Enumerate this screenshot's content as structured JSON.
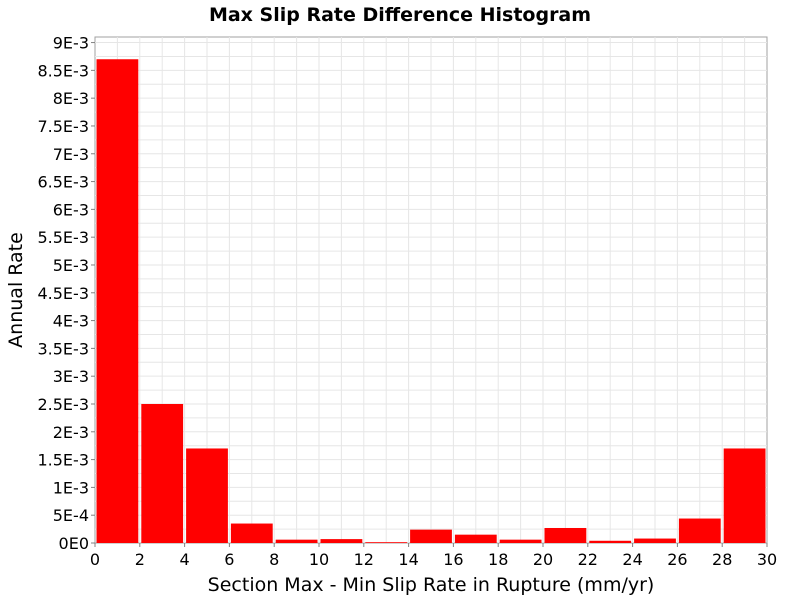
{
  "chart_data": {
    "type": "bar",
    "title": "Max Slip Rate Difference Histogram",
    "xlabel": "Section Max - Min Slip Rate in Rupture (mm/yr)",
    "ylabel": "Annual Rate",
    "xlim": [
      0,
      30
    ],
    "ylim": [
      0,
      0.0091
    ],
    "x_ticks": [
      0,
      2,
      4,
      6,
      8,
      10,
      12,
      14,
      16,
      18,
      20,
      22,
      24,
      26,
      28,
      30
    ],
    "x_tick_labels": [
      "0",
      "2",
      "4",
      "6",
      "8",
      "10",
      "12",
      "14",
      "16",
      "18",
      "20",
      "22",
      "24",
      "26",
      "28",
      "30"
    ],
    "y_ticks": [
      0,
      0.0005,
      0.001,
      0.0015,
      0.002,
      0.0025,
      0.003,
      0.0035,
      0.004,
      0.0045,
      0.005,
      0.0055,
      0.006,
      0.0065,
      0.007,
      0.0075,
      0.008,
      0.0085,
      0.009
    ],
    "y_tick_labels": [
      "0E0",
      "5E-4",
      "1E-3",
      "1.5E-3",
      "2E-3",
      "2.5E-3",
      "3E-3",
      "3.5E-3",
      "4E-3",
      "4.5E-3",
      "5E-3",
      "5.5E-3",
      "6E-3",
      "6.5E-3",
      "7E-3",
      "7.5E-3",
      "8E-3",
      "8.5E-3",
      "9E-3"
    ],
    "bins": [
      {
        "x0": 0,
        "x1": 2,
        "value": 0.0087
      },
      {
        "x0": 2,
        "x1": 4,
        "value": 0.0025
      },
      {
        "x0": 4,
        "x1": 6,
        "value": 0.0017
      },
      {
        "x0": 6,
        "x1": 8,
        "value": 0.00035
      },
      {
        "x0": 8,
        "x1": 10,
        "value": 6e-05
      },
      {
        "x0": 10,
        "x1": 12,
        "value": 7e-05
      },
      {
        "x0": 12,
        "x1": 14,
        "value": 1e-05
      },
      {
        "x0": 14,
        "x1": 16,
        "value": 0.00024
      },
      {
        "x0": 16,
        "x1": 18,
        "value": 0.00015
      },
      {
        "x0": 18,
        "x1": 20,
        "value": 6e-05
      },
      {
        "x0": 20,
        "x1": 22,
        "value": 0.00027
      },
      {
        "x0": 22,
        "x1": 24,
        "value": 4e-05
      },
      {
        "x0": 24,
        "x1": 26,
        "value": 8e-05
      },
      {
        "x0": 26,
        "x1": 28,
        "value": 0.00044
      },
      {
        "x0": 28,
        "x1": 30,
        "value": 0.0017
      }
    ],
    "grid": true,
    "bar_color": "#ff0000",
    "gridline_color": "#e6e6e6",
    "border_color": "#a0a0a0"
  }
}
